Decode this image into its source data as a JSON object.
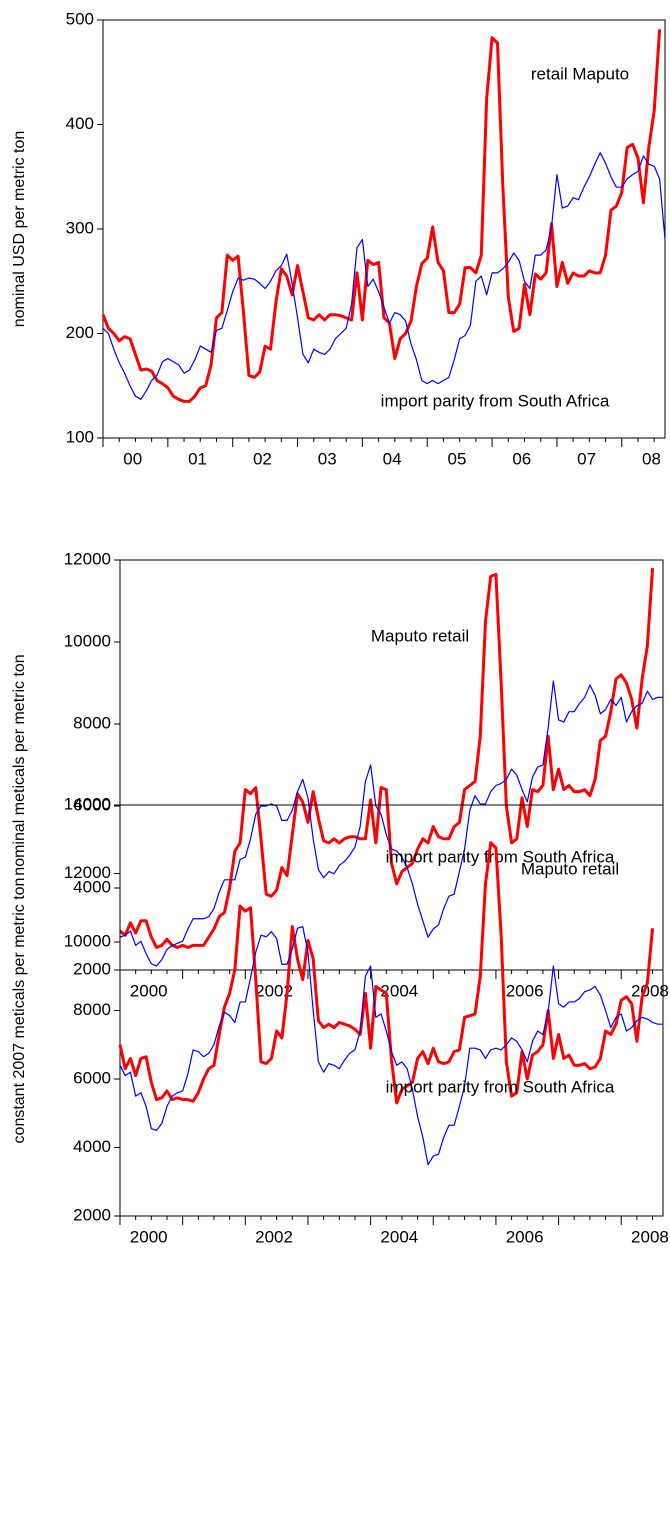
{
  "chart_data": [
    {
      "type": "line",
      "ylabel": "nominal USD per metric ton",
      "ylim": [
        100,
        500
      ],
      "yticks": [
        100,
        200,
        300,
        400,
        500
      ],
      "categories": [
        null,
        null,
        null,
        null,
        null,
        "00",
        null,
        null,
        null,
        null,
        null,
        null,
        null,
        null,
        null,
        null,
        null,
        "01",
        null,
        null,
        null,
        null,
        null,
        null,
        null,
        null,
        null,
        null,
        null,
        "02",
        null,
        null,
        null,
        null,
        null,
        null,
        null,
        null,
        null,
        null,
        null,
        "03",
        null,
        null,
        null,
        null,
        null,
        null,
        null,
        null,
        null,
        null,
        null,
        "04",
        null,
        null,
        null,
        null,
        null,
        null,
        null,
        null,
        null,
        null,
        null,
        "05",
        null,
        null,
        null,
        null,
        null,
        null,
        null,
        null,
        null,
        null,
        null,
        "06",
        null,
        null,
        null,
        null,
        null,
        null,
        null,
        null,
        null,
        null,
        null,
        "07",
        null,
        null,
        null,
        null,
        null,
        null,
        null,
        null,
        null,
        null,
        null,
        "08",
        null,
        null,
        null
      ],
      "annotations": [
        "retail Maputo",
        "import parity from South Africa"
      ],
      "series": [
        {
          "name": "retail Maputo",
          "color": "#ff0000",
          "values": [
            218,
            205,
            200,
            193,
            197,
            195,
            180,
            165,
            166,
            164,
            155,
            152,
            148,
            140,
            137,
            135,
            135,
            140,
            148,
            150,
            170,
            215,
            220,
            275,
            270,
            274,
            220,
            160,
            158,
            163,
            188,
            185,
            230,
            262,
            255,
            237,
            265,
            240,
            215,
            213,
            218,
            213,
            218,
            218,
            217,
            215,
            213,
            258,
            213,
            270,
            266,
            268,
            215,
            210,
            176,
            195,
            200,
            212,
            245,
            267,
            272,
            302,
            268,
            260,
            220,
            220,
            228,
            263,
            263,
            258,
            275,
            425,
            483,
            478,
            340,
            235,
            202,
            205,
            247,
            218,
            257,
            252,
            258,
            305,
            245,
            268,
            248,
            258,
            255,
            255,
            260,
            258,
            258,
            275,
            318,
            322,
            335,
            378,
            381,
            368,
            325,
            378,
            413,
            491,
            null
          ]
        },
        {
          "name": "import parity from South Africa",
          "color": "#0000ff",
          "values": [
            205,
            200,
            185,
            172,
            162,
            150,
            140,
            137,
            145,
            155,
            160,
            173,
            176,
            173,
            170,
            162,
            165,
            175,
            188,
            185,
            182,
            203,
            205,
            222,
            240,
            253,
            251,
            253,
            252,
            248,
            243,
            250,
            260,
            265,
            276,
            248,
            215,
            180,
            172,
            185,
            182,
            180,
            185,
            195,
            200,
            205,
            228,
            282,
            290,
            245,
            252,
            240,
            225,
            210,
            220,
            218,
            212,
            190,
            175,
            155,
            152,
            155,
            152,
            155,
            158,
            175,
            195,
            198,
            208,
            250,
            255,
            237,
            258,
            258,
            262,
            268,
            277,
            270,
            250,
            243,
            275,
            275,
            280,
            302,
            352,
            320,
            322,
            330,
            328,
            340,
            350,
            362,
            373,
            363,
            350,
            340,
            340,
            348,
            352,
            355,
            370,
            362,
            360,
            348,
            290
          ]
        }
      ]
    },
    {
      "type": "line",
      "ylabel": "nominal meticals per metric ton",
      "ylim": [
        2000,
        12000
      ],
      "yticks": [
        2000,
        4000,
        6000,
        8000,
        10000,
        12000
      ],
      "categories": [
        null,
        null,
        null,
        null,
        null,
        "2000",
        null,
        null,
        null,
        null,
        null,
        null,
        null,
        null,
        null,
        null,
        null,
        null,
        null,
        null,
        null,
        null,
        null,
        null,
        null,
        null,
        null,
        null,
        null,
        "2002",
        null,
        null,
        null,
        null,
        null,
        null,
        null,
        null,
        null,
        null,
        null,
        null,
        null,
        null,
        null,
        null,
        null,
        null,
        null,
        null,
        null,
        null,
        null,
        "2004",
        null,
        null,
        null,
        null,
        null,
        null,
        null,
        null,
        null,
        null,
        null,
        null,
        null,
        null,
        null,
        null,
        null,
        null,
        null,
        null,
        null,
        null,
        null,
        "2006",
        null,
        null,
        null,
        null,
        null,
        null,
        null,
        null,
        null,
        null,
        null,
        null,
        null,
        null,
        null,
        null,
        null,
        null,
        null,
        null,
        null,
        null,
        null,
        "2008",
        null,
        null,
        null
      ],
      "annotations": [
        "Maputo retail",
        "import parity from South Africa"
      ],
      "series": [
        {
          "name": "Maputo retail",
          "color": "#ff0000",
          "values": [
            2950,
            2850,
            3150,
            2900,
            3200,
            3200,
            2800,
            2550,
            2600,
            2750,
            2600,
            2550,
            2600,
            2550,
            2600,
            2600,
            2600,
            2800,
            3000,
            3300,
            3400,
            4000,
            4900,
            5100,
            6400,
            6300,
            6450,
            5200,
            3850,
            3800,
            3950,
            4500,
            4300,
            5300,
            6300,
            6100,
            5600,
            6350,
            5700,
            5150,
            5100,
            5200,
            5100,
            5200,
            5250,
            5250,
            5200,
            5200,
            6150,
            5100,
            6450,
            6400,
            4600,
            4100,
            4400,
            4500,
            4600,
            4950,
            5200,
            5100,
            5500,
            5250,
            5200,
            5200,
            5500,
            5600,
            6400,
            6500,
            6600,
            7700,
            10500,
            11600,
            11650,
            9000,
            6000,
            5100,
            5200,
            6200,
            5500,
            6400,
            6350,
            6500,
            7700,
            6400,
            6900,
            6400,
            6500,
            6350,
            6350,
            6400,
            6250,
            6650,
            7600,
            7700,
            8300,
            9100,
            9200,
            9000,
            8600,
            7900,
            9100,
            9900,
            11800,
            null,
            null
          ]
        },
        {
          "name": "import parity from South Africa",
          "color": "#0000ff",
          "values": [
            2800,
            2850,
            2950,
            2600,
            2700,
            2400,
            2150,
            2100,
            2250,
            2500,
            2600,
            2650,
            2700,
            3000,
            3250,
            3250,
            3250,
            3300,
            3500,
            3900,
            4200,
            4200,
            4200,
            4700,
            4750,
            5200,
            5800,
            6000,
            6000,
            6050,
            6000,
            5650,
            5650,
            5900,
            6350,
            6650,
            6200,
            5200,
            4450,
            4250,
            4400,
            4350,
            4550,
            4650,
            4800,
            5000,
            5500,
            6600,
            7000,
            6000,
            5800,
            5300,
            4950,
            4900,
            4750,
            4500,
            4100,
            3600,
            3200,
            2800,
            3000,
            3100,
            3500,
            3800,
            3850,
            4400,
            4950,
            5900,
            6250,
            6050,
            6050,
            6350,
            6500,
            6550,
            6650,
            6900,
            6750,
            6400,
            6100,
            6700,
            6950,
            7000,
            7900,
            9050,
            8100,
            8050,
            8300,
            8300,
            8500,
            8650,
            8950,
            8700,
            8250,
            8350,
            8600,
            8450,
            8650,
            8050,
            8300,
            8450,
            8500,
            8800,
            8600,
            8650,
            8650
          ]
        }
      ]
    },
    {
      "type": "line",
      "ylabel": "constant 2007 meticals per metric ton",
      "ylim": [
        2000,
        14000
      ],
      "yticks": [
        2000,
        4000,
        6000,
        8000,
        10000,
        12000,
        14000
      ],
      "categories": [
        null,
        null,
        null,
        null,
        null,
        "2000",
        null,
        null,
        null,
        null,
        null,
        null,
        null,
        null,
        null,
        null,
        null,
        null,
        null,
        null,
        null,
        null,
        null,
        null,
        null,
        null,
        null,
        null,
        null,
        "2002",
        null,
        null,
        null,
        null,
        null,
        null,
        null,
        null,
        null,
        null,
        null,
        null,
        null,
        null,
        null,
        null,
        null,
        null,
        null,
        null,
        null,
        null,
        null,
        "2004",
        null,
        null,
        null,
        null,
        null,
        null,
        null,
        null,
        null,
        null,
        null,
        null,
        null,
        null,
        null,
        null,
        null,
        null,
        null,
        null,
        null,
        null,
        null,
        "2006",
        null,
        null,
        null,
        null,
        null,
        null,
        null,
        null,
        null,
        null,
        null,
        null,
        null,
        null,
        null,
        null,
        null,
        null,
        null,
        null,
        null,
        null,
        null,
        "2008",
        null,
        null,
        null
      ],
      "annotations": [
        "Maputo retail",
        "import parity from South Africa"
      ],
      "series": [
        {
          "name": "Maputo retail",
          "color": "#ff0000",
          "values": [
            7000,
            6300,
            6600,
            6100,
            6600,
            6650,
            5900,
            5400,
            5450,
            5650,
            5400,
            5450,
            5400,
            5400,
            5350,
            5600,
            6000,
            6300,
            6400,
            7300,
            8100,
            8500,
            9200,
            11050,
            10900,
            11000,
            8900,
            6500,
            6450,
            6600,
            7400,
            7200,
            8500,
            10450,
            9500,
            8900,
            10050,
            9500,
            7700,
            7500,
            7600,
            7500,
            7650,
            7600,
            7550,
            7450,
            7300,
            8500,
            6900,
            8700,
            8600,
            8500,
            6550,
            5300,
            5700,
            5800,
            5900,
            6600,
            6800,
            6450,
            6900,
            6500,
            6450,
            6500,
            6800,
            6850,
            7800,
            7850,
            7900,
            9000,
            11700,
            12900,
            12750,
            10200,
            6500,
            5500,
            5600,
            6800,
            6000,
            6700,
            6800,
            7000,
            8000,
            6600,
            7300,
            6600,
            6700,
            6400,
            6400,
            6450,
            6300,
            6350,
            6600,
            7400,
            7300,
            7600,
            8300,
            8400,
            8200,
            7100,
            8400,
            8800,
            10400,
            null,
            null
          ]
        },
        {
          "name": "import parity from South Africa",
          "color": "#0000ff",
          "values": [
            6400,
            6100,
            6200,
            5500,
            5600,
            5200,
            4550,
            4500,
            4700,
            5200,
            5500,
            5600,
            5650,
            6150,
            6850,
            6800,
            6650,
            6750,
            7000,
            7550,
            7950,
            7850,
            7650,
            8250,
            8250,
            8950,
            9700,
            10200,
            10150,
            10300,
            10100,
            9350,
            9350,
            9800,
            10400,
            10450,
            9700,
            8000,
            6500,
            6200,
            6450,
            6400,
            6300,
            6550,
            6750,
            6850,
            7400,
            9000,
            9300,
            7800,
            7900,
            7400,
            6800,
            6400,
            6500,
            6300,
            5700,
            4900,
            4300,
            3500,
            3750,
            3800,
            4300,
            4650,
            4650,
            5200,
            5800,
            6900,
            6900,
            6850,
            6600,
            6850,
            6900,
            6850,
            7000,
            7200,
            7100,
            6850,
            6500,
            7100,
            7400,
            7300,
            7950,
            9300,
            8200,
            8100,
            8250,
            8250,
            8350,
            8550,
            8600,
            8700,
            8450,
            8000,
            7500,
            7800,
            7900,
            7400,
            7500,
            7700,
            7800,
            7750,
            7650,
            7600,
            7600
          ]
        }
      ]
    }
  ]
}
